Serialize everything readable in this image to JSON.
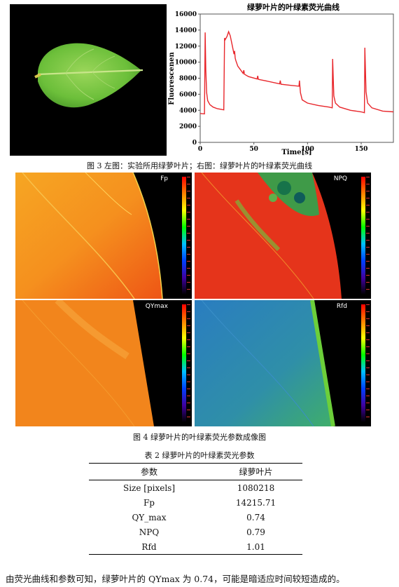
{
  "figure3": {
    "caption": "图 3  左图：实验所用绿萝叶片；右图：绿萝叶片的叶绿素荧光曲线"
  },
  "chart_data": {
    "type": "line",
    "title": "绿萝叶片的叶绿素荧光曲线",
    "xlabel": "Time[s]",
    "ylabel": "Fluorescenen",
    "xlim": [
      0,
      180
    ],
    "ylim": [
      0,
      16000
    ],
    "xticks": [
      0,
      50,
      100,
      150
    ],
    "yticks": [
      0,
      2000,
      4000,
      6000,
      8000,
      10000,
      12000,
      14000,
      16000
    ],
    "grid": false,
    "series": [
      {
        "color": "#e8262b",
        "x": [
          0,
          4,
          4.6,
          5.2,
          6,
          7,
          9,
          12,
          16,
          20,
          22,
          22.7,
          23.3,
          25,
          26.5,
          28,
          30,
          31.5,
          32,
          32.6,
          33.2,
          35,
          40,
          40.6,
          41.2,
          45,
          53,
          53.6,
          54.2,
          60,
          74,
          74.6,
          75.2,
          85,
          92,
          92.5,
          93.4,
          95,
          100,
          110,
          120,
          123,
          123.4,
          124.5,
          126,
          130,
          140,
          150,
          153,
          153.4,
          154.5,
          156,
          160,
          170,
          180
        ],
        "y": [
          3600,
          3550,
          13700,
          9000,
          6200,
          5200,
          4700,
          4400,
          4200,
          4100,
          4050,
          13000,
          12800,
          13200,
          13800,
          13300,
          12000,
          11000,
          11400,
          10500,
          10200,
          9500,
          8600,
          9000,
          8500,
          8200,
          7900,
          8300,
          7850,
          7700,
          7300,
          7700,
          7250,
          7100,
          7000,
          7700,
          6200,
          5300,
          4900,
          4600,
          4400,
          4300,
          10400,
          5800,
          4900,
          4400,
          4000,
          3800,
          3700,
          11800,
          6300,
          4900,
          4300,
          3900,
          3800
        ]
      }
    ]
  },
  "figure4": {
    "caption": "图 4  绿萝叶片的叶绿素荧光参数成像图",
    "panels": {
      "fp": "Fp",
      "npq": "NPQ",
      "qymax": "QYmax",
      "rfd": "Rfd"
    }
  },
  "table2": {
    "caption": "表 2  绿萝叶片的叶绿素荧光参数",
    "headers": [
      "参数",
      "绿萝叶片"
    ],
    "rows": [
      [
        "Size [pixels]",
        "1080218"
      ],
      [
        "Fp",
        "14215.71"
      ],
      [
        "QY_max",
        "0.74"
      ],
      [
        "NPQ",
        "0.79"
      ],
      [
        "Rfd",
        "1.01"
      ]
    ]
  },
  "body_text": "由荧光曲线和参数可知，绿萝叶片的 QYmax 为 0.74，可能是暗适应时间较短造成的。"
}
